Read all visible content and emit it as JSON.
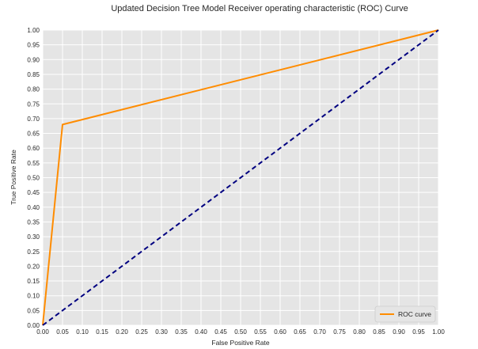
{
  "chart_data": {
    "type": "line",
    "title": "Updated Decision Tree Model Receiver operating characteristic (ROC) Curve",
    "xlabel": "False Positive Rate",
    "ylabel": "True Positive Rate",
    "xlim": [
      0.0,
      1.0
    ],
    "ylim": [
      0.0,
      1.0
    ],
    "grid": true,
    "legend_position": "lower right",
    "x_ticks": [
      "0.00",
      "0.05",
      "0.10",
      "0.15",
      "0.20",
      "0.25",
      "0.30",
      "0.35",
      "0.40",
      "0.45",
      "0.50",
      "0.55",
      "0.60",
      "0.65",
      "0.70",
      "0.75",
      "0.80",
      "0.85",
      "0.90",
      "0.95",
      "1.00"
    ],
    "y_ticks": [
      "0.00",
      "0.05",
      "0.10",
      "0.15",
      "0.20",
      "0.25",
      "0.30",
      "0.35",
      "0.40",
      "0.45",
      "0.50",
      "0.55",
      "0.60",
      "0.65",
      "0.70",
      "0.75",
      "0.80",
      "0.85",
      "0.90",
      "0.95",
      "1.00"
    ],
    "series": [
      {
        "name": "ROC curve",
        "color": "#ff8c00",
        "style": "solid",
        "in_legend": true,
        "x": [
          0.0,
          0.05,
          1.0
        ],
        "y": [
          0.0,
          0.68,
          1.0
        ]
      },
      {
        "color": "#000080",
        "style": "dashed",
        "in_legend": false,
        "x": [
          0.0,
          1.0
        ],
        "y": [
          0.0,
          1.0
        ]
      }
    ],
    "colors": {
      "plot_background": "#e5e5e5",
      "grid": "#ffffff"
    }
  }
}
